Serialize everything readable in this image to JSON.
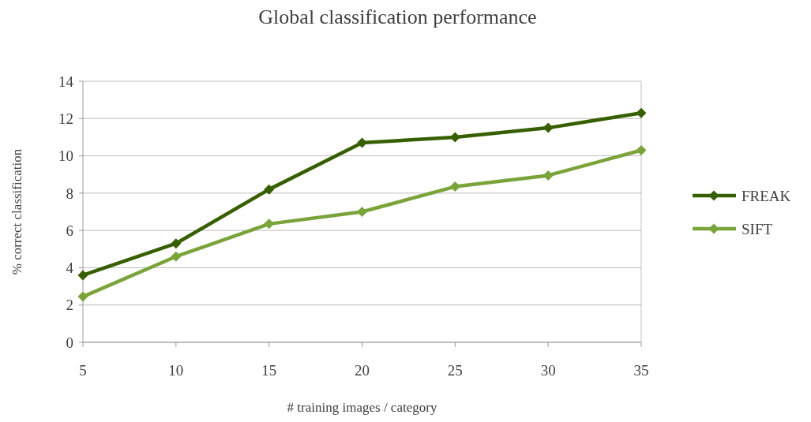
{
  "chart_data": {
    "type": "line",
    "title": "Global classification performance",
    "xlabel": "# training images / category",
    "ylabel": "% correct classification",
    "x": [
      5,
      10,
      15,
      20,
      25,
      30,
      35
    ],
    "xlim": [
      5,
      35
    ],
    "xticks": [
      5,
      10,
      15,
      20,
      25,
      30,
      35
    ],
    "ylim": [
      0,
      14
    ],
    "yticks": [
      0,
      2,
      4,
      6,
      8,
      10,
      12,
      14
    ],
    "series": [
      {
        "name": "FREAK",
        "color": "#375f00",
        "values": [
          3.6,
          5.3,
          8.2,
          10.7,
          11.0,
          11.5,
          12.3
        ]
      },
      {
        "name": "SIFT",
        "color": "#7aa33a",
        "values": [
          2.45,
          4.6,
          6.35,
          7.0,
          8.35,
          8.95,
          10.3
        ]
      }
    ],
    "grid": "y",
    "legend": "right",
    "marker": "diamond",
    "line_style": "solid"
  }
}
